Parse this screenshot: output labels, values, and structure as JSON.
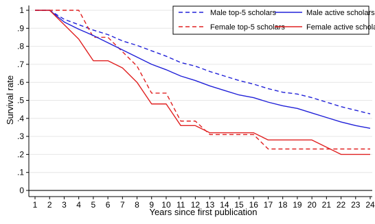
{
  "chart_data": {
    "type": "line",
    "xlabel": "Years since first publication",
    "ylabel": "Survival rate",
    "xlim": [
      1,
      24
    ],
    "ylim": [
      0,
      1
    ],
    "x": [
      1,
      2,
      3,
      4,
      5,
      6,
      7,
      8,
      9,
      10,
      11,
      12,
      13,
      14,
      15,
      16,
      17,
      18,
      19,
      20,
      21,
      22,
      23,
      24
    ],
    "x_ticks": [
      "1",
      "2",
      "3",
      "4",
      "5",
      "6",
      "7",
      "8",
      "9",
      "10",
      "11",
      "12",
      "13",
      "14",
      "15",
      "16",
      "17",
      "18",
      "19",
      "20",
      "21",
      "22",
      "23",
      "24"
    ],
    "y_ticks": [
      {
        "value": 0,
        "label": "0"
      },
      {
        "value": 0.1,
        "label": ".1"
      },
      {
        "value": 0.2,
        "label": ".2"
      },
      {
        "value": 0.3,
        "label": ".3"
      },
      {
        "value": 0.4,
        "label": ".4"
      },
      {
        "value": 0.5,
        "label": ".5"
      },
      {
        "value": 0.6,
        "label": ".6"
      },
      {
        "value": 0.7,
        "label": ".7"
      },
      {
        "value": 0.8,
        "label": ".8"
      },
      {
        "value": 0.9,
        "label": ".9"
      },
      {
        "value": 1,
        "label": "1"
      }
    ],
    "grid": "horizontal",
    "legend_position": "top-right",
    "series": [
      {
        "name": "Male top-5 scholars",
        "color": "#2020d8",
        "dash": "dashed",
        "values": [
          1,
          1,
          0.95,
          0.92,
          0.89,
          0.865,
          0.83,
          0.805,
          0.775,
          0.745,
          0.71,
          0.69,
          0.66,
          0.635,
          0.61,
          0.59,
          0.565,
          0.545,
          0.535,
          0.515,
          0.49,
          0.465,
          0.445,
          0.425
        ]
      },
      {
        "name": "Female top-5 scholars",
        "color": "#e02020",
        "dash": "dashed",
        "values": [
          1,
          1,
          1,
          1,
          0.85,
          0.85,
          0.77,
          0.69,
          0.54,
          0.54,
          0.385,
          0.385,
          0.31,
          0.31,
          0.31,
          0.31,
          0.23,
          0.23,
          0.23,
          0.23,
          0.23,
          0.23,
          0.23,
          0.23
        ]
      },
      {
        "name": "Male active scholars",
        "color": "#2020d8",
        "dash": "solid",
        "values": [
          1,
          1,
          0.935,
          0.895,
          0.86,
          0.82,
          0.78,
          0.74,
          0.7,
          0.67,
          0.635,
          0.61,
          0.58,
          0.555,
          0.53,
          0.515,
          0.49,
          0.47,
          0.455,
          0.43,
          0.405,
          0.38,
          0.36,
          0.345
        ]
      },
      {
        "name": "Female active scholars",
        "color": "#e02020",
        "dash": "solid",
        "values": [
          1,
          1,
          0.92,
          0.84,
          0.72,
          0.72,
          0.68,
          0.6,
          0.48,
          0.48,
          0.36,
          0.36,
          0.32,
          0.32,
          0.32,
          0.32,
          0.28,
          0.28,
          0.28,
          0.28,
          0.24,
          0.2,
          0.2,
          0.2
        ]
      }
    ]
  }
}
